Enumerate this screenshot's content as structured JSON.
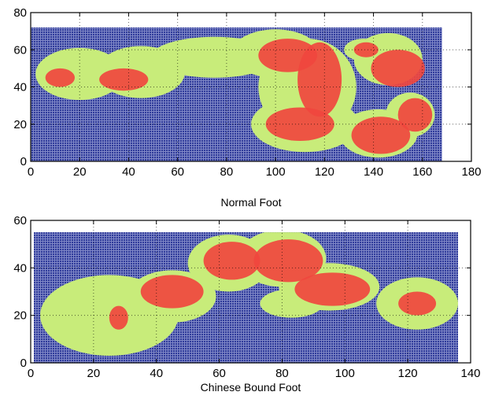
{
  "chart_data": [
    {
      "type": "heatmap",
      "title": "",
      "xlabel": "Normal Foot",
      "ylabel": "",
      "xlim": [
        0,
        180
      ],
      "ylim": [
        0,
        80
      ],
      "xticks": [
        0,
        20,
        40,
        60,
        80,
        100,
        120,
        140,
        160,
        180
      ],
      "yticks": [
        0,
        20,
        40,
        60,
        80
      ],
      "grid": "dotted",
      "sensor_area": {
        "x": [
          0,
          168
        ],
        "y": [
          0,
          72
        ]
      },
      "levels": [
        {
          "name": "background",
          "color": "#2e3a9a"
        },
        {
          "name": "low pressure",
          "color": "#c8ec7a"
        },
        {
          "name": "high pressure",
          "color": "#f0463e"
        }
      ],
      "low_regions": [
        {
          "cx": 20,
          "cy": 47,
          "rx": 18,
          "ry": 14
        },
        {
          "cx": 45,
          "cy": 48,
          "rx": 18,
          "ry": 14
        },
        {
          "cx": 75,
          "cy": 56,
          "rx": 26,
          "ry": 11
        },
        {
          "cx": 100,
          "cy": 58,
          "rx": 18,
          "ry": 13
        },
        {
          "cx": 113,
          "cy": 40,
          "rx": 20,
          "ry": 26
        },
        {
          "cx": 112,
          "cy": 20,
          "rx": 22,
          "ry": 15
        },
        {
          "cx": 142,
          "cy": 15,
          "rx": 16,
          "ry": 13
        },
        {
          "cx": 146,
          "cy": 55,
          "rx": 14,
          "ry": 14
        },
        {
          "cx": 155,
          "cy": 25,
          "rx": 10,
          "ry": 12
        },
        {
          "cx": 136,
          "cy": 60,
          "rx": 8,
          "ry": 6
        }
      ],
      "high_regions": [
        {
          "cx": 12,
          "cy": 45,
          "rx": 6,
          "ry": 5
        },
        {
          "cx": 38,
          "cy": 44,
          "rx": 10,
          "ry": 6
        },
        {
          "cx": 105,
          "cy": 57,
          "rx": 12,
          "ry": 9
        },
        {
          "cx": 118,
          "cy": 44,
          "rx": 9,
          "ry": 20
        },
        {
          "cx": 110,
          "cy": 20,
          "rx": 14,
          "ry": 9
        },
        {
          "cx": 143,
          "cy": 14,
          "rx": 12,
          "ry": 10
        },
        {
          "cx": 150,
          "cy": 50,
          "rx": 11,
          "ry": 10
        },
        {
          "cx": 157,
          "cy": 25,
          "rx": 7,
          "ry": 9
        },
        {
          "cx": 137,
          "cy": 60,
          "rx": 5,
          "ry": 4
        }
      ]
    },
    {
      "type": "heatmap",
      "title": "",
      "xlabel": "Chinese Bound Foot",
      "ylabel": "",
      "xlim": [
        0,
        140
      ],
      "ylim": [
        0,
        60
      ],
      "xticks": [
        0,
        20,
        40,
        60,
        80,
        100,
        120,
        140
      ],
      "yticks": [
        0,
        20,
        40,
        60
      ],
      "grid": "dotted",
      "sensor_area": {
        "x": [
          1,
          136
        ],
        "y": [
          0,
          55
        ]
      },
      "levels": [
        {
          "name": "background",
          "color": "#2e3a9a"
        },
        {
          "name": "low pressure",
          "color": "#c8ec7a"
        },
        {
          "name": "high pressure",
          "color": "#f0463e"
        }
      ],
      "low_regions": [
        {
          "cx": 25,
          "cy": 20,
          "rx": 22,
          "ry": 17
        },
        {
          "cx": 45,
          "cy": 28,
          "rx": 14,
          "ry": 11
        },
        {
          "cx": 63,
          "cy": 42,
          "rx": 13,
          "ry": 12
        },
        {
          "cx": 80,
          "cy": 44,
          "rx": 14,
          "ry": 12
        },
        {
          "cx": 95,
          "cy": 32,
          "rx": 16,
          "ry": 10
        },
        {
          "cx": 83,
          "cy": 25,
          "rx": 10,
          "ry": 6
        },
        {
          "cx": 123,
          "cy": 25,
          "rx": 13,
          "ry": 11
        }
      ],
      "high_regions": [
        {
          "cx": 45,
          "cy": 30,
          "rx": 10,
          "ry": 7
        },
        {
          "cx": 64,
          "cy": 43,
          "rx": 9,
          "ry": 8
        },
        {
          "cx": 82,
          "cy": 43,
          "rx": 11,
          "ry": 9
        },
        {
          "cx": 96,
          "cy": 31,
          "rx": 12,
          "ry": 7
        },
        {
          "cx": 28,
          "cy": 19,
          "rx": 3,
          "ry": 5
        },
        {
          "cx": 123,
          "cy": 25,
          "rx": 6,
          "ry": 5
        }
      ]
    }
  ]
}
